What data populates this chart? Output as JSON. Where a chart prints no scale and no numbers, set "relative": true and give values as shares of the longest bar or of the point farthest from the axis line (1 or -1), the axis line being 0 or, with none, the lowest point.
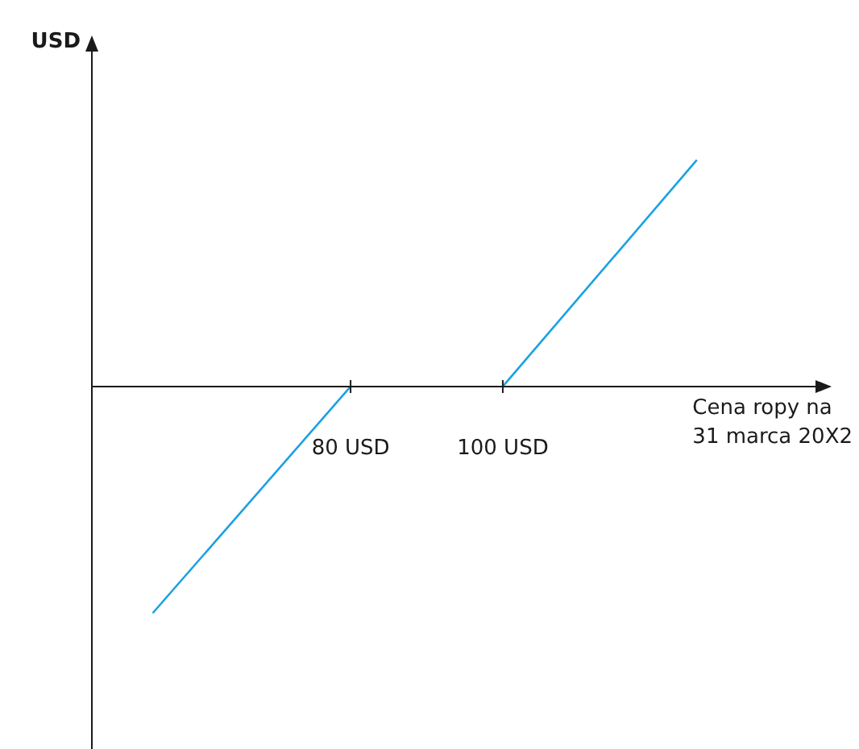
{
  "chart_data": {
    "type": "line",
    "relative": true,
    "xlabel": "Cena ropy na\n31 marca 20X2",
    "annotations": [
      "USD"
    ],
    "xlim": [
      46,
      143
    ],
    "xticks": [
      {
        "value": 80,
        "label": "80 USD"
      },
      {
        "value": 100,
        "label": "100 USD"
      }
    ],
    "series": [
      {
        "color": "#1ba1e2",
        "x": [
          54,
          80
        ],
        "values": [
          -1,
          0
        ]
      },
      {
        "color": "#1ba1e2",
        "x": [
          100,
          125.5
        ],
        "values": [
          0,
          1
        ]
      }
    ]
  }
}
